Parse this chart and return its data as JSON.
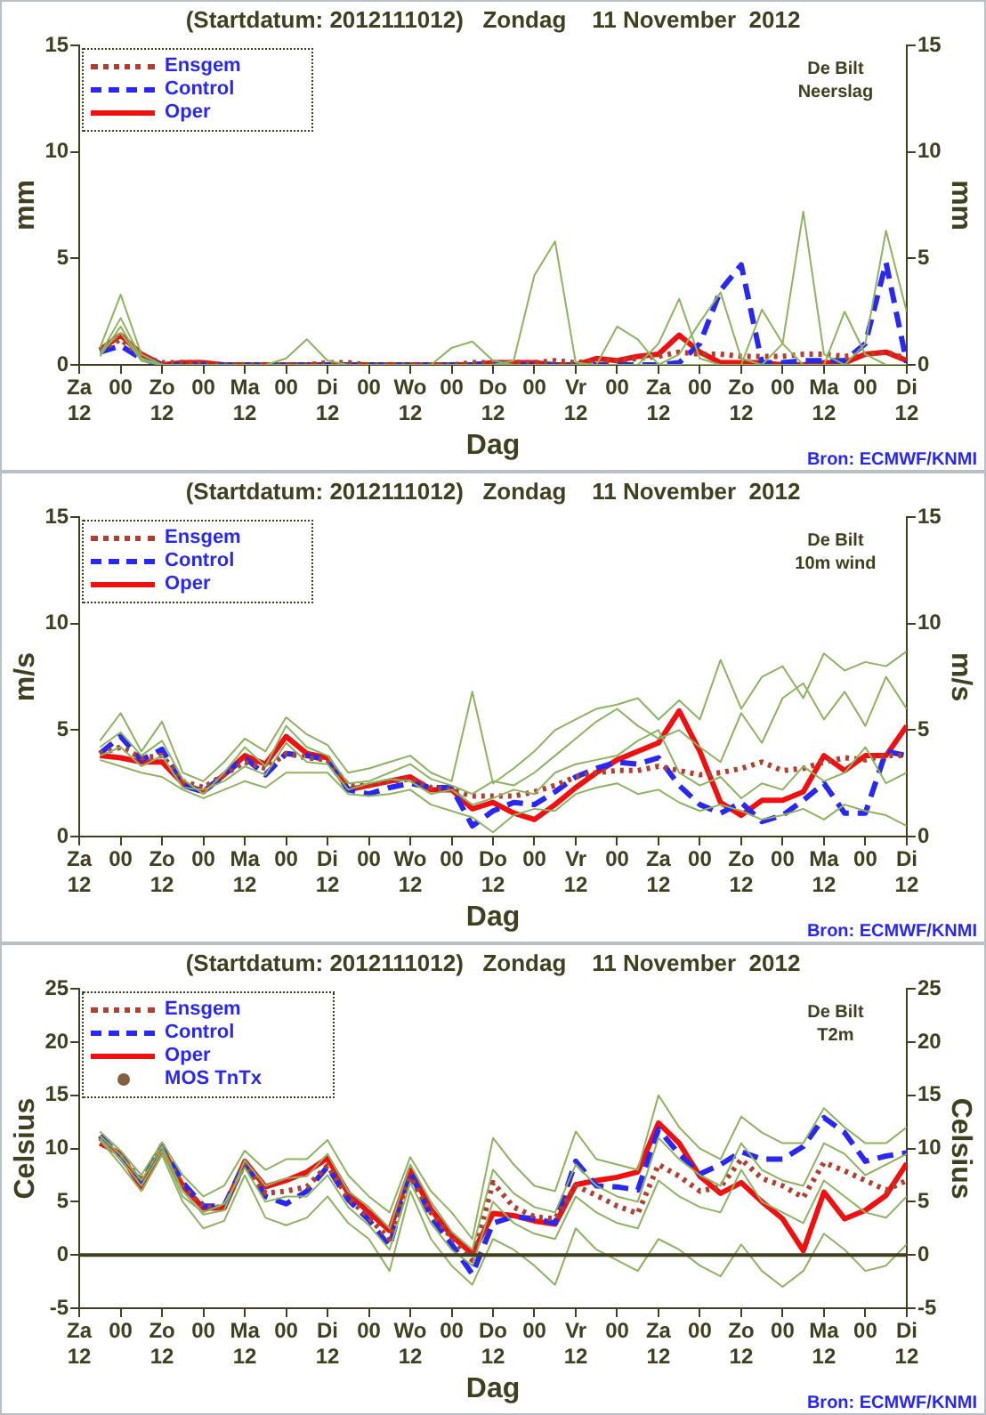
{
  "chart_data": [
    {
      "type": "line",
      "title": "(Startdatum: 2012111012)   Zondag    11 November  2012",
      "xlabel": "Dag",
      "ylabel": "mm",
      "y2label": "mm",
      "annotations": [
        "De Bilt",
        "Neerslag",
        "Bron: ECMWF/KNMI"
      ],
      "x": [
        "2012-11-10T18:00",
        "2012-11-11T00:00",
        "2012-11-11T06:00",
        "2012-11-11T12:00",
        "2012-11-11T18:00",
        "2012-11-12T00:00",
        "2012-11-12T06:00",
        "2012-11-12T12:00",
        "2012-11-12T18:00",
        "2012-11-13T00:00",
        "2012-11-13T06:00",
        "2012-11-13T12:00",
        "2012-11-13T18:00",
        "2012-11-14T00:00",
        "2012-11-14T06:00",
        "2012-11-14T12:00",
        "2012-11-14T18:00",
        "2012-11-15T00:00",
        "2012-11-15T06:00",
        "2012-11-15T12:00",
        "2012-11-15T18:00",
        "2012-11-16T00:00",
        "2012-11-16T06:00",
        "2012-11-16T12:00",
        "2012-11-16T18:00",
        "2012-11-17T00:00",
        "2012-11-17T06:00",
        "2012-11-17T12:00",
        "2012-11-17T18:00",
        "2012-11-18T00:00",
        "2012-11-18T06:00",
        "2012-11-18T12:00",
        "2012-11-18T18:00",
        "2012-11-19T00:00",
        "2012-11-19T06:00",
        "2012-11-19T12:00",
        "2012-11-19T18:00",
        "2012-11-20T00:00",
        "2012-11-20T06:00",
        "2012-11-20T12:00"
      ],
      "xlim": [
        "2012-11-10T12:00",
        "2012-11-20T12:00"
      ],
      "xticks": [
        {
          "value": "2012-11-10T12:00",
          "label": "Za\n12"
        },
        {
          "value": "2012-11-11T00:00",
          "label": "00"
        },
        {
          "value": "2012-11-11T12:00",
          "label": "Zo\n12"
        },
        {
          "value": "2012-11-12T00:00",
          "label": "00"
        },
        {
          "value": "2012-11-12T12:00",
          "label": "Ma\n12"
        },
        {
          "value": "2012-11-13T00:00",
          "label": "00"
        },
        {
          "value": "2012-11-13T12:00",
          "label": "Di\n12"
        },
        {
          "value": "2012-11-14T00:00",
          "label": "00"
        },
        {
          "value": "2012-11-14T12:00",
          "label": "Wo\n12"
        },
        {
          "value": "2012-11-15T00:00",
          "label": "00"
        },
        {
          "value": "2012-11-15T12:00",
          "label": "Do\n12"
        },
        {
          "value": "2012-11-16T00:00",
          "label": "00"
        },
        {
          "value": "2012-11-16T12:00",
          "label": "Vr\n12"
        },
        {
          "value": "2012-11-17T00:00",
          "label": "00"
        },
        {
          "value": "2012-11-17T12:00",
          "label": "Za\n12"
        },
        {
          "value": "2012-11-18T00:00",
          "label": "00"
        },
        {
          "value": "2012-11-18T12:00",
          "label": "Zo\n12"
        },
        {
          "value": "2012-11-19T00:00",
          "label": "00"
        },
        {
          "value": "2012-11-19T12:00",
          "label": "Ma\n12"
        },
        {
          "value": "2012-11-20T00:00",
          "label": "00"
        },
        {
          "value": "2012-11-20T12:00",
          "label": "Di\n12"
        }
      ],
      "ylim": [
        0,
        15
      ],
      "yticks": [
        0,
        5,
        10,
        15
      ],
      "y2lim": [
        0,
        15
      ],
      "y2ticks": [
        0,
        5,
        10,
        15
      ],
      "legend": "top left",
      "series": [
        {
          "color": "#8db360",
          "values": [
            0.8,
            3.3,
            0.5,
            0,
            0,
            0,
            0,
            0,
            0,
            0,
            0,
            0,
            0,
            0,
            0,
            0,
            0,
            0,
            0,
            0,
            0.2,
            4.2,
            5.8,
            0.1,
            0,
            0,
            0,
            0,
            0,
            0,
            0,
            0,
            0,
            0,
            0,
            0,
            0,
            0,
            0,
            0
          ]
        },
        {
          "color": "#8db360",
          "values": [
            0.6,
            1.5,
            0.2,
            0,
            0,
            0,
            0,
            0,
            0,
            0,
            0,
            0,
            0,
            0,
            0,
            0,
            0,
            0,
            0,
            0,
            0,
            0,
            0,
            0,
            0,
            0,
            0,
            1.0,
            3.1,
            0.3,
            0,
            0,
            0,
            1.0,
            7.2,
            0.5,
            0,
            0,
            0,
            0
          ]
        },
        {
          "color": "#8db360",
          "values": [
            0.5,
            2.2,
            0.3,
            0,
            0,
            0,
            0,
            0,
            0,
            0,
            0,
            0,
            0,
            0,
            0,
            0,
            0,
            0,
            0,
            0,
            0,
            0,
            0,
            0,
            0,
            0,
            0,
            0,
            0.5,
            2.0,
            3.4,
            0.3,
            0,
            0,
            0,
            0,
            0,
            1.0,
            6.3,
            2.5
          ]
        },
        {
          "color": "#8db360",
          "values": [
            0.4,
            1.8,
            0.2,
            0,
            0,
            0,
            0,
            0,
            0,
            0.3,
            1.2,
            0.2,
            0,
            0,
            0,
            0,
            0,
            0.8,
            1.1,
            0.2,
            0,
            0,
            0,
            0,
            0,
            1.8,
            1.2,
            0,
            0,
            0,
            0,
            0,
            2.6,
            1.0,
            0,
            0,
            2.5,
            0.5,
            0,
            0
          ]
        },
        {
          "name": "Ensgem",
          "color": "#b04030",
          "line_style": "dotted",
          "values": [
            0.7,
            1.2,
            0.4,
            0.1,
            0.1,
            0.1,
            0,
            0,
            0,
            0,
            0,
            0.1,
            0.1,
            0,
            0,
            0,
            0,
            0,
            0.1,
            0.1,
            0.1,
            0.1,
            0.2,
            0.1,
            0.2,
            0.2,
            0.3,
            0.4,
            0.6,
            0.5,
            0.5,
            0.4,
            0.4,
            0.4,
            0.5,
            0.5,
            0.4,
            0.5,
            0.6,
            0.3
          ]
        },
        {
          "name": "Control",
          "color": "#2828f0",
          "line_style": "dashed",
          "values": [
            0.6,
            0.9,
            0.3,
            0,
            0,
            0,
            0,
            0,
            0,
            0,
            0,
            0,
            0,
            0,
            0,
            0,
            0,
            0,
            0,
            0.1,
            0,
            0,
            0,
            0,
            0,
            0,
            0,
            0,
            0.1,
            1.0,
            3.5,
            4.7,
            0.1,
            0.1,
            0.2,
            0.2,
            0.2,
            1.0,
            4.8,
            0.1
          ]
        },
        {
          "name": "Oper",
          "color": "#f01010",
          "line_style": "solid",
          "values": [
            0.7,
            1.4,
            0.5,
            0,
            0.1,
            0.1,
            0,
            0,
            0,
            0,
            0,
            0,
            0,
            0,
            0,
            0,
            0,
            0,
            0,
            0.1,
            0.1,
            0.1,
            0,
            0,
            0.3,
            0.2,
            0.4,
            0.5,
            1.4,
            0.6,
            0.1,
            0.1,
            0.1,
            0,
            0,
            0.1,
            0.1,
            0.5,
            0.6,
            0.2
          ]
        }
      ]
    },
    {
      "type": "line",
      "title": "(Startdatum: 2012111012)   Zondag    11 November  2012",
      "xlabel": "Dag",
      "ylabel": "m/s",
      "y2label": "m/s",
      "annotations": [
        "De Bilt",
        "10m wind",
        "Bron: ECMWF/KNMI"
      ],
      "x": [
        "2012-11-10T18:00",
        "2012-11-11T00:00",
        "2012-11-11T06:00",
        "2012-11-11T12:00",
        "2012-11-11T18:00",
        "2012-11-12T00:00",
        "2012-11-12T06:00",
        "2012-11-12T12:00",
        "2012-11-12T18:00",
        "2012-11-13T00:00",
        "2012-11-13T06:00",
        "2012-11-13T12:00",
        "2012-11-13T18:00",
        "2012-11-14T00:00",
        "2012-11-14T06:00",
        "2012-11-14T12:00",
        "2012-11-14T18:00",
        "2012-11-15T00:00",
        "2012-11-15T06:00",
        "2012-11-15T12:00",
        "2012-11-15T18:00",
        "2012-11-16T00:00",
        "2012-11-16T06:00",
        "2012-11-16T12:00",
        "2012-11-16T18:00",
        "2012-11-17T00:00",
        "2012-11-17T06:00",
        "2012-11-17T12:00",
        "2012-11-17T18:00",
        "2012-11-18T00:00",
        "2012-11-18T06:00",
        "2012-11-18T12:00",
        "2012-11-18T18:00",
        "2012-11-19T00:00",
        "2012-11-19T06:00",
        "2012-11-19T12:00",
        "2012-11-19T18:00",
        "2012-11-20T00:00",
        "2012-11-20T06:00",
        "2012-11-20T12:00"
      ],
      "xlim": [
        "2012-11-10T12:00",
        "2012-11-20T12:00"
      ],
      "xticks": [
        {
          "value": "2012-11-10T12:00",
          "label": "Za\n12"
        },
        {
          "value": "2012-11-11T00:00",
          "label": "00"
        },
        {
          "value": "2012-11-11T12:00",
          "label": "Zo\n12"
        },
        {
          "value": "2012-11-12T00:00",
          "label": "00"
        },
        {
          "value": "2012-11-12T12:00",
          "label": "Ma\n12"
        },
        {
          "value": "2012-11-13T00:00",
          "label": "00"
        },
        {
          "value": "2012-11-13T12:00",
          "label": "Di\n12"
        },
        {
          "value": "2012-11-14T00:00",
          "label": "00"
        },
        {
          "value": "2012-11-14T12:00",
          "label": "Wo\n12"
        },
        {
          "value": "2012-11-15T00:00",
          "label": "00"
        },
        {
          "value": "2012-11-15T12:00",
          "label": "Do\n12"
        },
        {
          "value": "2012-11-16T00:00",
          "label": "00"
        },
        {
          "value": "2012-11-16T12:00",
          "label": "Vr\n12"
        },
        {
          "value": "2012-11-17T00:00",
          "label": "00"
        },
        {
          "value": "2012-11-17T12:00",
          "label": "Za\n12"
        },
        {
          "value": "2012-11-18T00:00",
          "label": "00"
        },
        {
          "value": "2012-11-18T12:00",
          "label": "Zo\n12"
        },
        {
          "value": "2012-11-19T00:00",
          "label": "00"
        },
        {
          "value": "2012-11-19T12:00",
          "label": "Ma\n12"
        },
        {
          "value": "2012-11-20T00:00",
          "label": "00"
        },
        {
          "value": "2012-11-20T12:00",
          "label": "Di\n12"
        }
      ],
      "ylim": [
        0,
        15
      ],
      "yticks": [
        0,
        5,
        10,
        15
      ],
      "y2lim": [
        0,
        15
      ],
      "y2ticks": [
        0,
        5,
        10,
        15
      ],
      "legend": "top left",
      "series": [
        {
          "color": "#8db360",
          "values": [
            4.5,
            5.8,
            4.0,
            5.4,
            3.0,
            2.6,
            3.5,
            4.6,
            4.0,
            5.6,
            4.8,
            4.3,
            3.0,
            3.2,
            3.5,
            3.8,
            3.0,
            2.6,
            6.8,
            2.5,
            3.2,
            4.0,
            5.0,
            5.5,
            6.0,
            6.2,
            6.5,
            5.5,
            6.4,
            5.5,
            8.3,
            6.0,
            7.5,
            8.0,
            6.5,
            8.6,
            7.8,
            8.2,
            8.0,
            8.7
          ]
        },
        {
          "color": "#8db360",
          "values": [
            3.6,
            3.3,
            3.0,
            2.8,
            2.2,
            1.8,
            2.2,
            2.6,
            2.3,
            3.0,
            3.0,
            3.0,
            2.0,
            1.9,
            2.0,
            2.2,
            1.5,
            1.2,
            0.9,
            0.2,
            1.0,
            1.3,
            1.2,
            2.0,
            2.3,
            2.5,
            2.0,
            2.2,
            1.6,
            1.2,
            1.5,
            1.2,
            0.8,
            1.0,
            1.3,
            0.8,
            1.5,
            1.2,
            1.0,
            0.5
          ]
        },
        {
          "color": "#8db360",
          "values": [
            4.2,
            4.9,
            3.8,
            4.5,
            2.7,
            2.0,
            3.0,
            4.2,
            3.3,
            5.2,
            4.2,
            3.8,
            2.5,
            2.6,
            3.0,
            3.4,
            2.7,
            2.4,
            2.0,
            2.6,
            2.4,
            3.0,
            3.8,
            4.6,
            5.4,
            6.0,
            5.2,
            4.6,
            5.0,
            4.2,
            3.5,
            5.8,
            4.4,
            6.5,
            7.2,
            5.5,
            6.8,
            5.2,
            7.5,
            6.0
          ]
        },
        {
          "color": "#8db360",
          "values": [
            3.8,
            4.2,
            3.3,
            3.8,
            2.3,
            2.2,
            2.6,
            3.3,
            2.9,
            4.4,
            3.5,
            3.4,
            2.2,
            2.5,
            2.7,
            2.6,
            2.0,
            2.2,
            1.5,
            1.8,
            2.2,
            2.0,
            3.0,
            3.4,
            3.6,
            3.8,
            4.5,
            5.0,
            3.0,
            2.4,
            2.8,
            1.8,
            2.5,
            2.2,
            3.3,
            2.6,
            3.0,
            4.2,
            2.5,
            3.0
          ]
        },
        {
          "name": "Ensgem",
          "color": "#b04030",
          "line_style": "dotted",
          "values": [
            3.9,
            4.2,
            3.7,
            3.8,
            2.6,
            2.3,
            2.9,
            3.5,
            3.2,
            3.9,
            3.7,
            3.6,
            2.4,
            2.4,
            2.6,
            2.7,
            2.3,
            2.2,
            1.9,
            1.9,
            1.9,
            2.1,
            2.4,
            2.8,
            3.0,
            3.1,
            3.1,
            3.3,
            3.1,
            2.9,
            3.0,
            3.2,
            3.5,
            3.1,
            3.2,
            3.5,
            3.7,
            3.6,
            3.8,
            3.8
          ]
        },
        {
          "name": "Control",
          "color": "#2828f0",
          "line_style": "dashed",
          "values": [
            3.9,
            4.7,
            3.6,
            4.1,
            2.4,
            2.1,
            2.9,
            3.7,
            2.9,
            3.9,
            3.8,
            3.6,
            2.2,
            2.0,
            2.3,
            2.5,
            2.3,
            2.3,
            0.5,
            1.2,
            1.6,
            1.5,
            2.1,
            2.8,
            3.2,
            3.5,
            3.4,
            3.7,
            2.4,
            1.5,
            1.1,
            1.6,
            0.7,
            1.0,
            1.7,
            2.5,
            1.1,
            1.1,
            4.0,
            3.8
          ]
        },
        {
          "name": "Oper",
          "color": "#f01010",
          "line_style": "solid",
          "values": [
            3.8,
            3.7,
            3.5,
            3.5,
            2.5,
            2.1,
            2.9,
            3.8,
            3.4,
            4.7,
            3.9,
            3.7,
            2.2,
            2.4,
            2.6,
            2.8,
            2.2,
            2.2,
            1.3,
            1.6,
            1.1,
            0.8,
            1.5,
            2.3,
            3.0,
            3.6,
            4.0,
            4.4,
            5.9,
            4.0,
            1.6,
            1.0,
            1.7,
            1.7,
            2.1,
            3.8,
            3.1,
            3.8,
            3.8,
            5.2
          ]
        }
      ]
    },
    {
      "type": "line",
      "title": "(Startdatum: 2012111012)   Zondag    11 November  2012",
      "xlabel": "Dag",
      "ylabel": "Celsius",
      "y2label": "Celsius",
      "annotations": [
        "De Bilt",
        "T2m",
        "Bron: ECMWF/KNMI"
      ],
      "x": [
        "2012-11-10T18:00",
        "2012-11-11T00:00",
        "2012-11-11T06:00",
        "2012-11-11T12:00",
        "2012-11-11T18:00",
        "2012-11-12T00:00",
        "2012-11-12T06:00",
        "2012-11-12T12:00",
        "2012-11-12T18:00",
        "2012-11-13T00:00",
        "2012-11-13T06:00",
        "2012-11-13T12:00",
        "2012-11-13T18:00",
        "2012-11-14T00:00",
        "2012-11-14T06:00",
        "2012-11-14T12:00",
        "2012-11-14T18:00",
        "2012-11-15T00:00",
        "2012-11-15T06:00",
        "2012-11-15T12:00",
        "2012-11-15T18:00",
        "2012-11-16T00:00",
        "2012-11-16T06:00",
        "2012-11-16T12:00",
        "2012-11-16T18:00",
        "2012-11-17T00:00",
        "2012-11-17T06:00",
        "2012-11-17T12:00",
        "2012-11-17T18:00",
        "2012-11-18T00:00",
        "2012-11-18T06:00",
        "2012-11-18T12:00",
        "2012-11-18T18:00",
        "2012-11-19T00:00",
        "2012-11-19T06:00",
        "2012-11-19T12:00",
        "2012-11-19T18:00",
        "2012-11-20T00:00",
        "2012-11-20T06:00",
        "2012-11-20T12:00"
      ],
      "xlim": [
        "2012-11-10T12:00",
        "2012-11-20T12:00"
      ],
      "xticks": [
        {
          "value": "2012-11-10T12:00",
          "label": "Za\n12"
        },
        {
          "value": "2012-11-11T00:00",
          "label": "00"
        },
        {
          "value": "2012-11-11T12:00",
          "label": "Zo\n12"
        },
        {
          "value": "2012-11-12T00:00",
          "label": "00"
        },
        {
          "value": "2012-11-12T12:00",
          "label": "Ma\n12"
        },
        {
          "value": "2012-11-13T00:00",
          "label": "00"
        },
        {
          "value": "2012-11-13T12:00",
          "label": "Di\n12"
        },
        {
          "value": "2012-11-14T00:00",
          "label": "00"
        },
        {
          "value": "2012-11-14T12:00",
          "label": "Wo\n12"
        },
        {
          "value": "2012-11-15T00:00",
          "label": "00"
        },
        {
          "value": "2012-11-15T12:00",
          "label": "Do\n12"
        },
        {
          "value": "2012-11-16T00:00",
          "label": "00"
        },
        {
          "value": "2012-11-16T12:00",
          "label": "Vr\n12"
        },
        {
          "value": "2012-11-17T00:00",
          "label": "00"
        },
        {
          "value": "2012-11-17T12:00",
          "label": "Za\n12"
        },
        {
          "value": "2012-11-18T00:00",
          "label": "00"
        },
        {
          "value": "2012-11-18T12:00",
          "label": "Zo\n12"
        },
        {
          "value": "2012-11-19T00:00",
          "label": "00"
        },
        {
          "value": "2012-11-19T12:00",
          "label": "Ma\n12"
        },
        {
          "value": "2012-11-20T00:00",
          "label": "00"
        },
        {
          "value": "2012-11-20T12:00",
          "label": "Di\n12"
        }
      ],
      "ylim": [
        -5,
        25
      ],
      "yticks": [
        -5,
        0,
        5,
        10,
        15,
        20,
        25
      ],
      "y2lim": [
        -5,
        25
      ],
      "y2ticks": [
        -5,
        0,
        5,
        10,
        15,
        20,
        25
      ],
      "legend": "top left",
      "ref_lines": [
        {
          "axis": "y",
          "value": 0,
          "color": "#404020"
        }
      ],
      "series": [
        {
          "color": "#8db360",
          "values": [
            11.6,
            9.8,
            7.5,
            10.6,
            7.5,
            5.5,
            6.5,
            9.8,
            8.0,
            9.0,
            9.0,
            10.8,
            7.5,
            5.5,
            4.0,
            9.2,
            6.0,
            4.0,
            1.5,
            11.0,
            8.5,
            6.5,
            6.0,
            11.6,
            9.0,
            8.5,
            8.0,
            15.0,
            12.0,
            10.0,
            9.0,
            13.0,
            11.5,
            10.5,
            10.5,
            13.8,
            12.0,
            10.5,
            10.5,
            12.0
          ]
        },
        {
          "color": "#8db360",
          "values": [
            10.8,
            8.5,
            6.0,
            9.4,
            5.0,
            2.5,
            3.2,
            7.5,
            3.5,
            2.8,
            3.5,
            5.5,
            3.0,
            1.5,
            -1.5,
            6.0,
            1.5,
            -1.0,
            -2.8,
            1.5,
            0.5,
            -1.0,
            -2.8,
            2.5,
            0.5,
            -0.5,
            -1.5,
            1.5,
            0.5,
            -1.0,
            -2.0,
            1.0,
            -1.5,
            -3.0,
            -1.5,
            2.0,
            0.5,
            -1.5,
            -1.0,
            1.0
          ]
        },
        {
          "color": "#8db360",
          "values": [
            11.2,
            9.4,
            7.0,
            10.2,
            6.0,
            3.8,
            4.2,
            8.9,
            6.5,
            7.2,
            7.4,
            9.5,
            6.0,
            4.5,
            2.5,
            8.5,
            5.0,
            2.2,
            0.5,
            8.0,
            5.8,
            4.5,
            4.0,
            8.5,
            6.5,
            5.5,
            5.0,
            11.0,
            9.0,
            7.5,
            6.5,
            10.5,
            8.0,
            7.0,
            6.5,
            10.5,
            9.5,
            7.5,
            8.5,
            9.5
          ]
        },
        {
          "color": "#8db360",
          "values": [
            10.9,
            9.0,
            6.5,
            9.8,
            5.5,
            4.0,
            4.8,
            8.2,
            5.0,
            5.5,
            5.5,
            7.5,
            4.5,
            2.8,
            0.5,
            6.8,
            3.0,
            0.5,
            -1.0,
            5.0,
            3.0,
            2.0,
            1.5,
            5.5,
            4.0,
            3.0,
            2.5,
            7.0,
            5.5,
            4.5,
            4.0,
            8.0,
            5.0,
            4.0,
            3.0,
            7.0,
            5.5,
            4.0,
            3.5,
            5.5
          ]
        },
        {
          "name": "Ensgem",
          "color": "#b04030",
          "line_style": "dotted",
          "values": [
            11.0,
            9.3,
            6.9,
            10.1,
            6.4,
            4.5,
            4.5,
            8.6,
            5.8,
            6.0,
            6.4,
            8.4,
            5.4,
            3.5,
            1.5,
            7.3,
            4.0,
            1.6,
            -0.5,
            6.8,
            4.5,
            3.6,
            3.4,
            6.5,
            5.6,
            4.6,
            3.9,
            8.5,
            7.4,
            6.0,
            6.4,
            9.0,
            7.2,
            6.5,
            5.4,
            8.7,
            7.9,
            7.0,
            6.1,
            7.0
          ]
        },
        {
          "name": "Control",
          "color": "#2828f0",
          "line_style": "dashed",
          "values": [
            11.2,
            9.2,
            6.8,
            10.3,
            6.8,
            4.6,
            4.6,
            8.7,
            5.5,
            4.8,
            6.0,
            8.3,
            5.2,
            3.3,
            0.8,
            7.8,
            3.6,
            1.0,
            -1.8,
            3.0,
            3.6,
            3.4,
            3.0,
            8.8,
            6.5,
            6.4,
            6.1,
            11.8,
            9.5,
            7.6,
            8.5,
            9.7,
            9.0,
            9.0,
            10.2,
            12.9,
            11.5,
            8.8,
            9.3,
            9.6
          ]
        },
        {
          "name": "Oper",
          "color": "#f01010",
          "line_style": "solid",
          "values": [
            10.5,
            9.5,
            6.3,
            10.0,
            6.5,
            4.4,
            4.4,
            8.8,
            6.4,
            7.0,
            7.8,
            9.1,
            5.8,
            4.0,
            2.3,
            8.0,
            4.3,
            1.8,
            0.1,
            3.9,
            3.7,
            3.2,
            2.9,
            6.6,
            7.0,
            7.3,
            7.8,
            12.4,
            10.5,
            7.4,
            5.8,
            6.8,
            5.0,
            3.4,
            0.4,
            5.9,
            3.4,
            4.2,
            5.6,
            8.6
          ]
        },
        {
          "name": "MOS TnTx",
          "type": "scatter",
          "marker": "circle",
          "color": "#806040",
          "values": [
            null,
            null,
            null,
            null,
            null,
            null,
            null,
            null,
            null,
            null,
            null,
            null,
            null,
            null,
            null,
            null,
            null,
            null,
            null,
            null,
            null,
            null,
            null,
            null,
            null,
            null,
            null,
            null,
            null,
            null,
            null,
            null,
            null,
            null,
            null,
            null,
            null,
            null,
            null,
            null
          ]
        }
      ]
    }
  ]
}
